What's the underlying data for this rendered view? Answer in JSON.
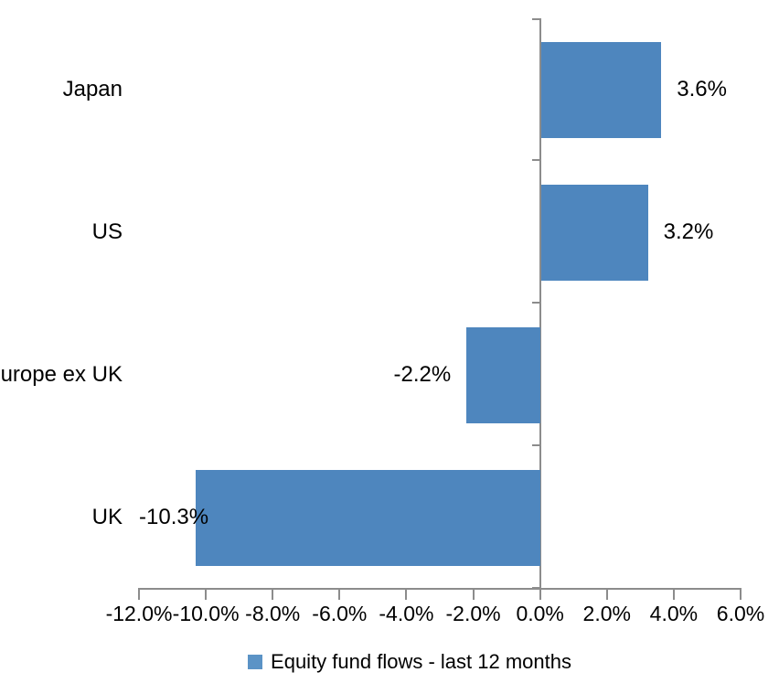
{
  "chart_data": {
    "type": "bar",
    "orientation": "horizontal",
    "title": "",
    "categories": [
      "Japan",
      "US",
      "Europe ex UK",
      "UK"
    ],
    "series": [
      {
        "name": "Equity fund flows - last 12 months",
        "values": [
          3.6,
          3.2,
          -2.2,
          -10.3
        ],
        "value_labels": [
          "3.6%",
          "3.2%",
          "-2.2%",
          "-10.3%"
        ]
      }
    ],
    "xlim": [
      -12,
      6
    ],
    "x_ticks": [
      -12,
      -10,
      -8,
      -6,
      -4,
      -2,
      0,
      2,
      4,
      6
    ],
    "x_tick_labels": [
      "-12.0%",
      "-10.0%",
      "-8.0%",
      "-6.0%",
      "-4.0%",
      "-2.0%",
      "0.0%",
      "2.0%",
      "4.0%",
      "6.0%"
    ],
    "grid": false,
    "legend_position": "bottom",
    "colors": {
      "bar": "#4E86BE",
      "legend_marker": "#5B93C6",
      "axis": "#8C8C8C",
      "text": "#000000",
      "background": "#FFFFFF"
    }
  },
  "legend": {
    "label": "Equity fund flows - last 12 months"
  }
}
